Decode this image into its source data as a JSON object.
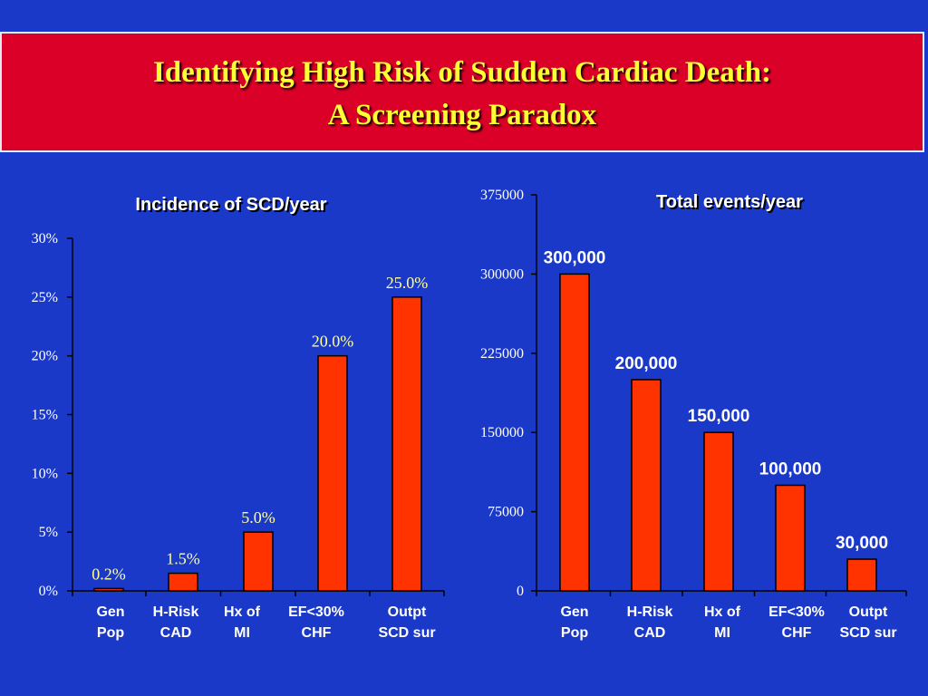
{
  "slide": {
    "title_line1": "Identifying High Risk of Sudden Cardiac Death:",
    "title_line2": "A Screening Paradox",
    "background": "#1b39c9",
    "banner_color": "#db0027",
    "title_color": "#ffff33"
  },
  "chart_data": [
    {
      "type": "bar",
      "title": "Incidence of SCD/year",
      "categories": [
        [
          "Gen",
          "Pop"
        ],
        [
          "H-Risk",
          "CAD"
        ],
        [
          "Hx of",
          "MI"
        ],
        [
          "EF<30%",
          "CHF"
        ],
        [
          "Outpt",
          "SCD sur"
        ]
      ],
      "values": [
        0.2,
        1.5,
        5.0,
        20.0,
        25.0
      ],
      "value_labels": [
        "0.2%",
        "1.5%",
        "5.0%",
        "20.0%",
        "25.0%"
      ],
      "yticks": [
        "0%",
        "5%",
        "10%",
        "15%",
        "20%",
        "25%",
        "30%"
      ],
      "ylim": [
        0,
        30
      ],
      "bar_color": "#ff3300",
      "xlabel": "",
      "ylabel": ""
    },
    {
      "type": "bar",
      "title": "Total events/year",
      "categories": [
        [
          "Gen",
          "Pop"
        ],
        [
          "H-Risk",
          "CAD"
        ],
        [
          "Hx of",
          "MI"
        ],
        [
          "EF<30%",
          "CHF"
        ],
        [
          "Outpt",
          "SCD sur"
        ]
      ],
      "values": [
        300000,
        200000,
        150000,
        100000,
        30000
      ],
      "value_labels": [
        "300,000",
        "200,000",
        "150,000",
        "100,000",
        "30,000"
      ],
      "yticks": [
        "0",
        "75000",
        "150000",
        "225000",
        "300000",
        "375000"
      ],
      "ylim": [
        0,
        375000
      ],
      "bar_color": "#ff3300",
      "xlabel": "",
      "ylabel": ""
    }
  ]
}
